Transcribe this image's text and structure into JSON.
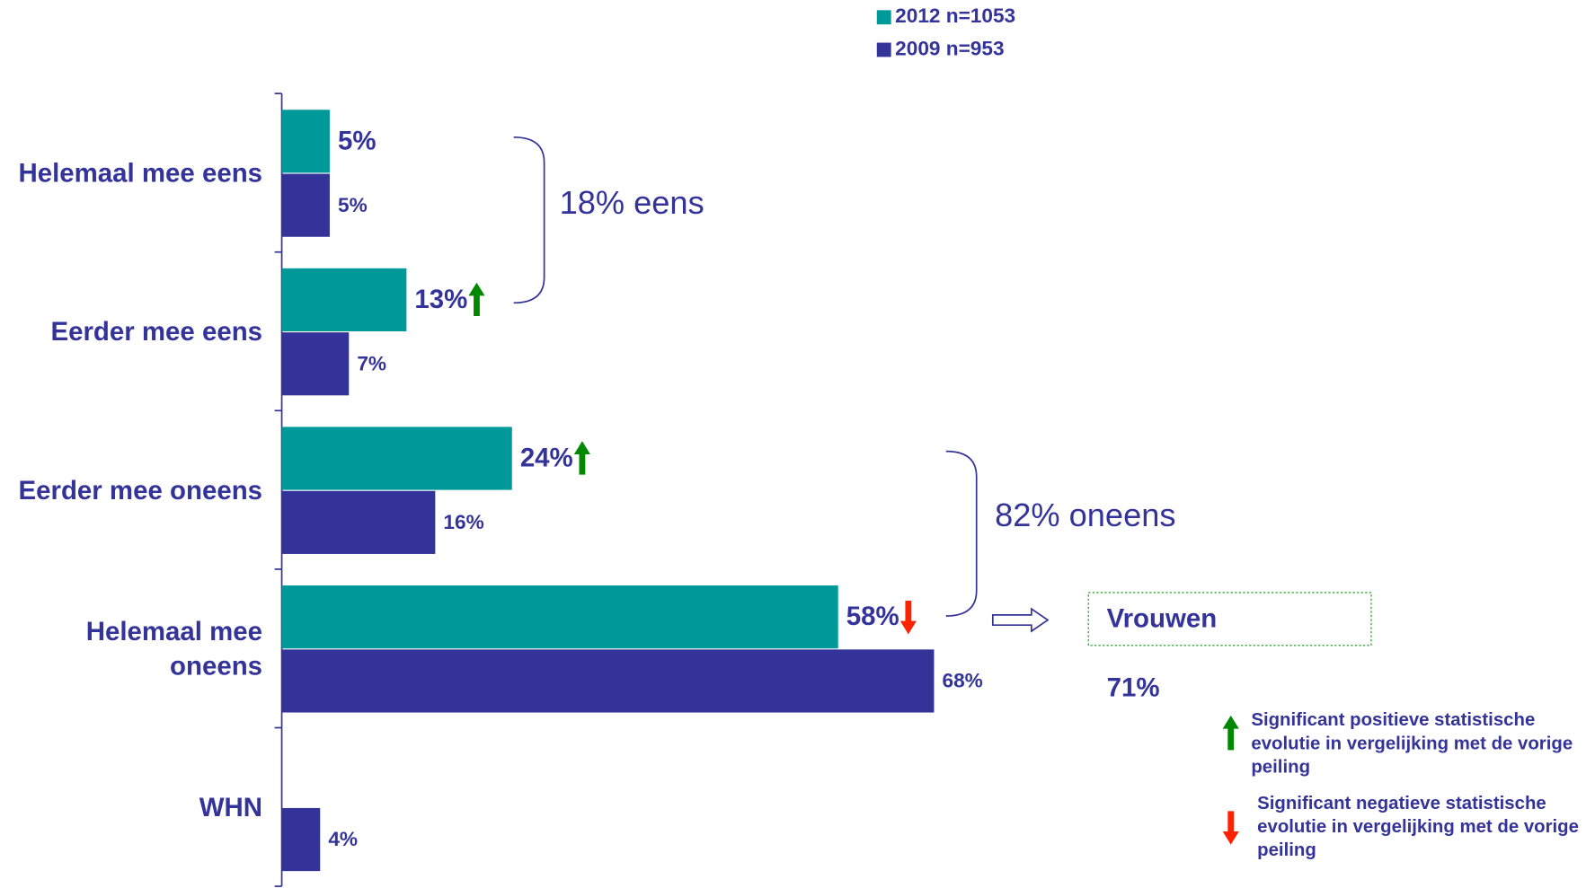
{
  "chart_data": {
    "type": "bar",
    "orientation": "horizontal",
    "categories": [
      "Helemaal mee eens",
      "Eerder mee eens",
      "Eerder mee oneens",
      "Helemaal mee oneens",
      "WHN"
    ],
    "series": [
      {
        "name": "2012 n=1053",
        "color": "#009999",
        "values": [
          5,
          13,
          24,
          58,
          null
        ],
        "value_labels": [
          "5%",
          "13%",
          "24%",
          "58%",
          null
        ]
      },
      {
        "name": "2009 n=953",
        "color": "#333399",
        "values": [
          5,
          7,
          16,
          68,
          4
        ],
        "value_labels": [
          "5%",
          "7%",
          "16%",
          "68%",
          "4%"
        ]
      }
    ],
    "xlim": [
      0,
      100
    ],
    "significance": [
      {
        "series": 0,
        "index": 1,
        "direction": "up"
      },
      {
        "series": 0,
        "index": 2,
        "direction": "up"
      },
      {
        "series": 0,
        "index": 3,
        "direction": "down"
      }
    ],
    "annotations": {
      "agree_total": "18% eens",
      "disagree_total": "82% oneens",
      "subgroup": "Vrouwen",
      "subgroup_value": "71%",
      "legend_up": "Significant positieve statistische evolutie in vergelijking met de vorige peiling",
      "legend_down": "Significant negatieve statistische evolutie in vergelijking met de vorige peiling"
    }
  }
}
